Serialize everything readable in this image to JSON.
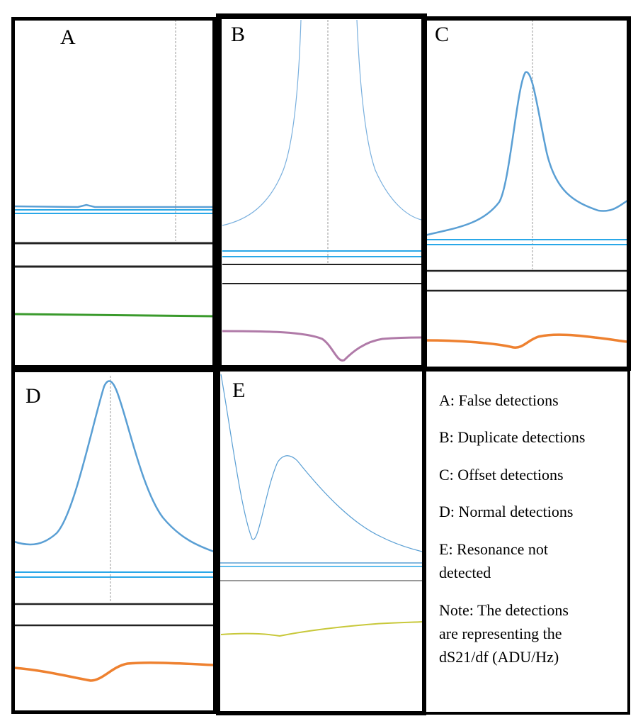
{
  "panels": [
    {
      "letter": "A",
      "label": "False detections",
      "lower_color": "#3a9a2c"
    },
    {
      "letter": "B",
      "label": "Duplicate detections",
      "lower_color": "#b07aa8"
    },
    {
      "letter": "C",
      "label": "Offset detections",
      "lower_color": "#ee8130"
    },
    {
      "letter": "D",
      "label": "Normal detections",
      "lower_color": "#ee8130"
    },
    {
      "letter": "E",
      "label": "Resonance not detected",
      "lower_color": "#c8c83a"
    }
  ],
  "legend": {
    "lines": [
      "A: False detections",
      "B: Duplicate detections",
      "C: Offset detections",
      "D: Normal detections",
      "E: Resonance not",
      "detected",
      "Note: The detections",
      "are representing the",
      "dS21/df (ADU/Hz)"
    ]
  },
  "colors": {
    "frame": "#000000",
    "upper_curve": "#5a9fd4",
    "baseline": "#2aa8e8",
    "divider": "#222222",
    "marker_line": "#999999"
  }
}
